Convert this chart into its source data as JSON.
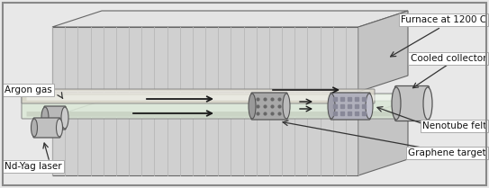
{
  "fig_width": 5.43,
  "fig_height": 2.09,
  "dpi": 100,
  "bg_color": "#e8e8e8",
  "border_color": "#888888",
  "furnace_face_color": "#d0d0d0",
  "furnace_stripe_color": "#b8b8b8",
  "furnace_top_color": "#e4e4e4",
  "furnace_right_color": "#c4c4c4",
  "furnace_bottom_block_color": "#cccccc",
  "tube_fill": "#dce8d8",
  "tube_edge": "#888888",
  "lens_color": "#bbbbbb",
  "target_color": "#aaaaaa",
  "collector_color": "#c0c0c0",
  "arrow_color": "#1a1a1a",
  "text_color": "#111111",
  "box_bg": "#ffffff",
  "box_edge": "#aaaaaa",
  "label_fontsize": 7.5,
  "labels": [
    "Furnace at 1200 C",
    "Cooled collector",
    "Argon gas",
    "Nd-Yag laser",
    "Nenotube felt",
    "Graphene target"
  ]
}
